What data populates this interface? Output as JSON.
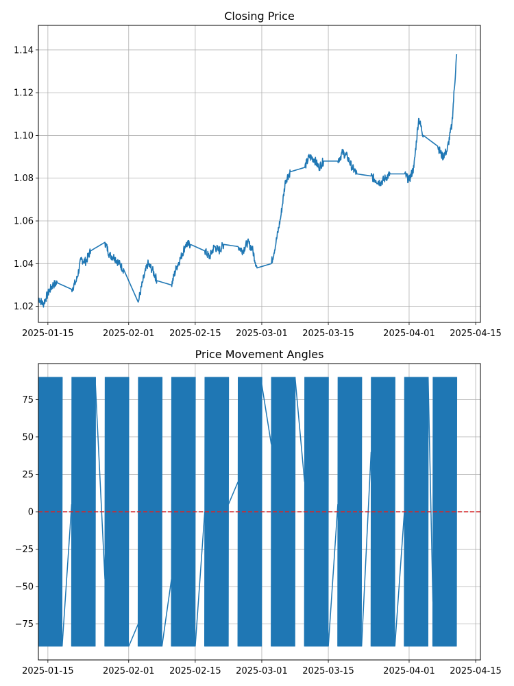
{
  "chart_data": [
    {
      "type": "line",
      "title": "Closing Price",
      "xlabel": "",
      "ylabel": "",
      "x_domain": [
        "2025-01-13",
        "2025-04-16"
      ],
      "ylim": [
        1.0125,
        1.1515
      ],
      "x_ticks": [
        "2025-01-15",
        "2025-02-01",
        "2025-02-15",
        "2025-03-01",
        "2025-03-15",
        "2025-04-01",
        "2025-04-15"
      ],
      "y_ticks": [
        1.02,
        1.04,
        1.06,
        1.08,
        1.1,
        1.12,
        1.14
      ],
      "y_tick_labels": [
        "1.02",
        "1.04",
        "1.06",
        "1.08",
        "1.10",
        "1.12",
        "1.14"
      ],
      "grid": true,
      "color": "#1f77b4",
      "series": [
        {
          "x": [
            "2025-01-13",
            "2025-01-14",
            "2025-01-15",
            "2025-01-16",
            "2025-01-17",
            "2025-01-20",
            "2025-01-21",
            "2025-01-22",
            "2025-01-23",
            "2025-01-24",
            "2025-01-27",
            "2025-01-28",
            "2025-01-29",
            "2025-01-30",
            "2025-01-31",
            "2025-02-03",
            "2025-02-04",
            "2025-02-05",
            "2025-02-06",
            "2025-02-07",
            "2025-02-10",
            "2025-02-11",
            "2025-02-12",
            "2025-02-13",
            "2025-02-14",
            "2025-02-17",
            "2025-02-18",
            "2025-02-19",
            "2025-02-20",
            "2025-02-21",
            "2025-02-24",
            "2025-02-25",
            "2025-02-26",
            "2025-02-27",
            "2025-02-28",
            "2025-03-03",
            "2025-03-04",
            "2025-03-05",
            "2025-03-06",
            "2025-03-07",
            "2025-03-10",
            "2025-03-11",
            "2025-03-12",
            "2025-03-13",
            "2025-03-14",
            "2025-03-17",
            "2025-03-18",
            "2025-03-19",
            "2025-03-20",
            "2025-03-21",
            "2025-03-24",
            "2025-03-25",
            "2025-03-26",
            "2025-03-27",
            "2025-03-28",
            "2025-03-31",
            "2025-04-01",
            "2025-04-02",
            "2025-04-03",
            "2025-04-04",
            "2025-04-07",
            "2025-04-08",
            "2025-04-09",
            "2025-04-10",
            "2025-04-11"
          ],
          "y": [
            1.024,
            1.021,
            1.026,
            1.03,
            1.031,
            1.028,
            1.032,
            1.042,
            1.041,
            1.046,
            1.05,
            1.044,
            1.043,
            1.04,
            1.037,
            1.022,
            1.032,
            1.04,
            1.037,
            1.032,
            1.03,
            1.038,
            1.043,
            1.049,
            1.049,
            1.046,
            1.043,
            1.048,
            1.046,
            1.049,
            1.048,
            1.046,
            1.05,
            1.047,
            1.038,
            1.04,
            1.05,
            1.062,
            1.079,
            1.083,
            1.085,
            1.09,
            1.089,
            1.085,
            1.088,
            1.088,
            1.092,
            1.09,
            1.085,
            1.082,
            1.081,
            1.079,
            1.078,
            1.08,
            1.082,
            1.082,
            1.079,
            1.085,
            1.108,
            1.1,
            1.095,
            1.09,
            1.093,
            1.105,
            1.138
          ]
        }
      ]
    },
    {
      "type": "line",
      "title": "Price Movement Angles",
      "xlabel": "",
      "ylabel": "",
      "x_domain": [
        "2025-01-13",
        "2025-04-16"
      ],
      "ylim": [
        -99,
        99
      ],
      "x_ticks": [
        "2025-01-15",
        "2025-02-01",
        "2025-02-15",
        "2025-03-01",
        "2025-03-15",
        "2025-04-01",
        "2025-04-15"
      ],
      "y_ticks": [
        -75,
        -50,
        -25,
        0,
        25,
        50,
        75
      ],
      "y_tick_labels": [
        "−75",
        "−50",
        "−25",
        "0",
        "25",
        "50",
        "75"
      ],
      "grid": true,
      "color": "#1f77b4",
      "reference_line": {
        "y": 0,
        "color": "#d62728",
        "style": "dashed"
      },
      "value_range": [
        -90,
        90
      ],
      "active_periods": [
        [
          "2025-01-13",
          "2025-01-18"
        ],
        [
          "2025-01-20",
          "2025-01-25"
        ],
        [
          "2025-01-27",
          "2025-02-01"
        ],
        [
          "2025-02-03",
          "2025-02-08"
        ],
        [
          "2025-02-10",
          "2025-02-15"
        ],
        [
          "2025-02-17",
          "2025-02-22"
        ],
        [
          "2025-02-24",
          "2025-03-01"
        ],
        [
          "2025-03-03",
          "2025-03-08"
        ],
        [
          "2025-03-10",
          "2025-03-15"
        ],
        [
          "2025-03-17",
          "2025-03-22"
        ],
        [
          "2025-03-24",
          "2025-03-29"
        ],
        [
          "2025-03-31",
          "2025-04-05"
        ],
        [
          "2025-04-06",
          "2025-04-11"
        ]
      ],
      "gap_lines": [
        [
          [
            "2025-01-18",
            -90
          ],
          [
            "2025-01-20",
            5
          ]
        ],
        [
          [
            "2025-01-25",
            85
          ],
          [
            "2025-01-27",
            -45
          ]
        ],
        [
          [
            "2025-02-01",
            -90
          ],
          [
            "2025-02-03",
            -75
          ]
        ],
        [
          [
            "2025-02-08",
            -90
          ],
          [
            "2025-02-10",
            -45
          ]
        ],
        [
          [
            "2025-02-15",
            -90
          ],
          [
            "2025-02-17",
            0
          ]
        ],
        [
          [
            "2025-02-22",
            5
          ],
          [
            "2025-02-24",
            20
          ]
        ],
        [
          [
            "2025-03-01",
            85
          ],
          [
            "2025-03-03",
            45
          ]
        ],
        [
          [
            "2025-03-08",
            90
          ],
          [
            "2025-03-10",
            20
          ]
        ],
        [
          [
            "2025-03-15",
            -90
          ],
          [
            "2025-03-17",
            5
          ]
        ],
        [
          [
            "2025-03-22",
            -90
          ],
          [
            "2025-03-24",
            40
          ]
        ],
        [
          [
            "2025-03-29",
            -90
          ],
          [
            "2025-03-31",
            0
          ]
        ],
        [
          [
            "2025-04-05",
            90
          ],
          [
            "2025-04-06",
            -60
          ]
        ]
      ]
    }
  ]
}
